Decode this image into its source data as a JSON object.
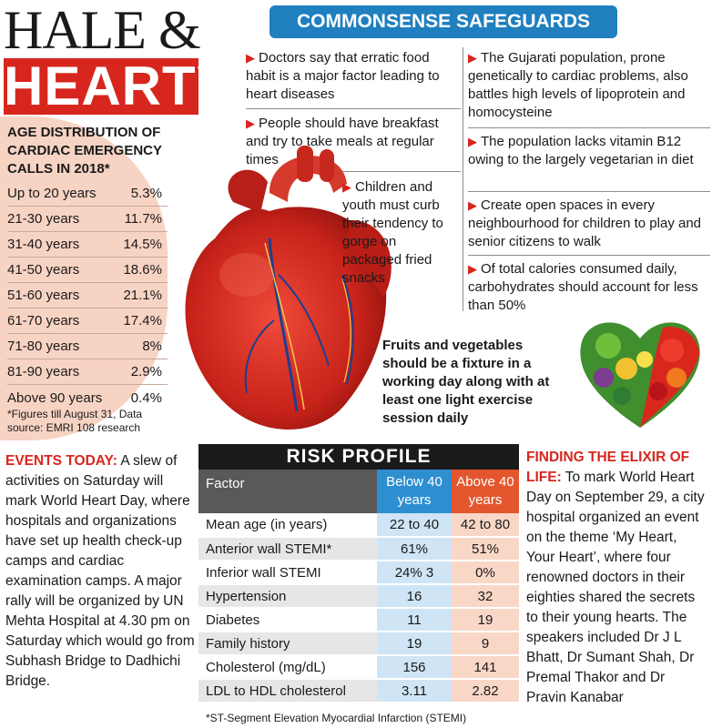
{
  "title": {
    "line1": "HALE &",
    "line2": "HEARTY"
  },
  "age_distribution": {
    "heading": "AGE DISTRIBUTION OF CARDIAC EMERGENCY CALLS IN 2018*",
    "rows": [
      {
        "range": "Up to 20 years",
        "pct": "5.3%"
      },
      {
        "range": "21-30 years",
        "pct": "11.7%"
      },
      {
        "range": "31-40 years",
        "pct": "14.5%"
      },
      {
        "range": "41-50 years",
        "pct": "18.6%"
      },
      {
        "range": "51-60 years",
        "pct": "21.1%"
      },
      {
        "range": "61-70 years",
        "pct": "17.4%"
      },
      {
        "range": "71-80 years",
        "pct": "8%"
      },
      {
        "range": "81-90 years",
        "pct": "2.9%"
      },
      {
        "range": "Above 90 years",
        "pct": "0.4%"
      }
    ],
    "note": "*Figures till August 31, Data source: EMRI 108 research"
  },
  "safeguards": {
    "banner": "COMMONSENSE SAFEGUARDS",
    "left": [
      "Doctors say that erratic food habit is a major factor leading to heart diseases",
      "People should have breakfast and try to take meals at regular times",
      "Children and youth must curb their tendency to gorge on packaged fried snacks"
    ],
    "right": [
      "The Gujarati population, prone genetically to cardiac problems, also battles high levels of lipoprotein and homocysteine",
      "The population lacks vitamin B12 owing to the largely vegetarian in diet",
      "Create open spaces in every neighbourhood for children to play and senior citizens to walk",
      "Of total calories consumed daily, carbohydrates should account for less than 50%"
    ],
    "fruits_note": "Fruits and vegetables should be a fixture in a working day along with at least one light exercise session daily"
  },
  "events": {
    "label": "EVENTS TODAY:",
    "text": "A slew of activities on Saturday will mark World Heart Day, where hospitals and organizations have set up health check-up camps and cardiac examination camps. A major rally will be organized by UN Mehta Hospital at 4.30 pm on Saturday which would go from Subhash Bridge to Dadhichi Bridge."
  },
  "risk_profile": {
    "title": "RISK PROFILE",
    "headers": {
      "factor": "Factor",
      "below": "Below 40 years",
      "above": "Above 40 years"
    },
    "rows": [
      {
        "factor": "Mean age (in years)",
        "below": "22 to 40",
        "above": "42 to 80"
      },
      {
        "factor": "Anterior wall STEMI*",
        "below": "61%",
        "above": "51%"
      },
      {
        "factor": "Inferior wall STEMI",
        "below": "24% 3",
        "above": "0%"
      },
      {
        "factor": "Hypertension",
        "below": "16",
        "above": "32"
      },
      {
        "factor": "Diabetes",
        "below": "11",
        "above": "19"
      },
      {
        "factor": "Family history",
        "below": "19",
        "above": "9"
      },
      {
        "factor": "Cholesterol (mg/dL)",
        "below": "156",
        "above": "141"
      },
      {
        "factor": "LDL to HDL cholesterol",
        "below": "3.11",
        "above": "2.82"
      }
    ],
    "footnote": "*ST-Segment Elevation Myocardial Infarction (STEMI)"
  },
  "elixir": {
    "label": "FINDING THE ELIXIR OF LIFE:",
    "text": "To mark World Heart Day on September 29, a city hospital organized an event on the theme ‘My Heart, Your Heart’, where four renowned doctors in their eighties shared the secrets to their young hearts. The speakers included Dr J L Bhatt, Dr Sumant Shah, Dr Premal Thakor and Dr Pravin Kanabar"
  },
  "colors": {
    "accent_red": "#d7261e",
    "banner_blue": "#1f7fbf",
    "age_panel": "#f7d3c3"
  },
  "icons": {
    "bullet": "red-arrow-icon",
    "heart": "anatomical-heart-icon",
    "veg": "fruit-vegetable-heart-icon"
  }
}
